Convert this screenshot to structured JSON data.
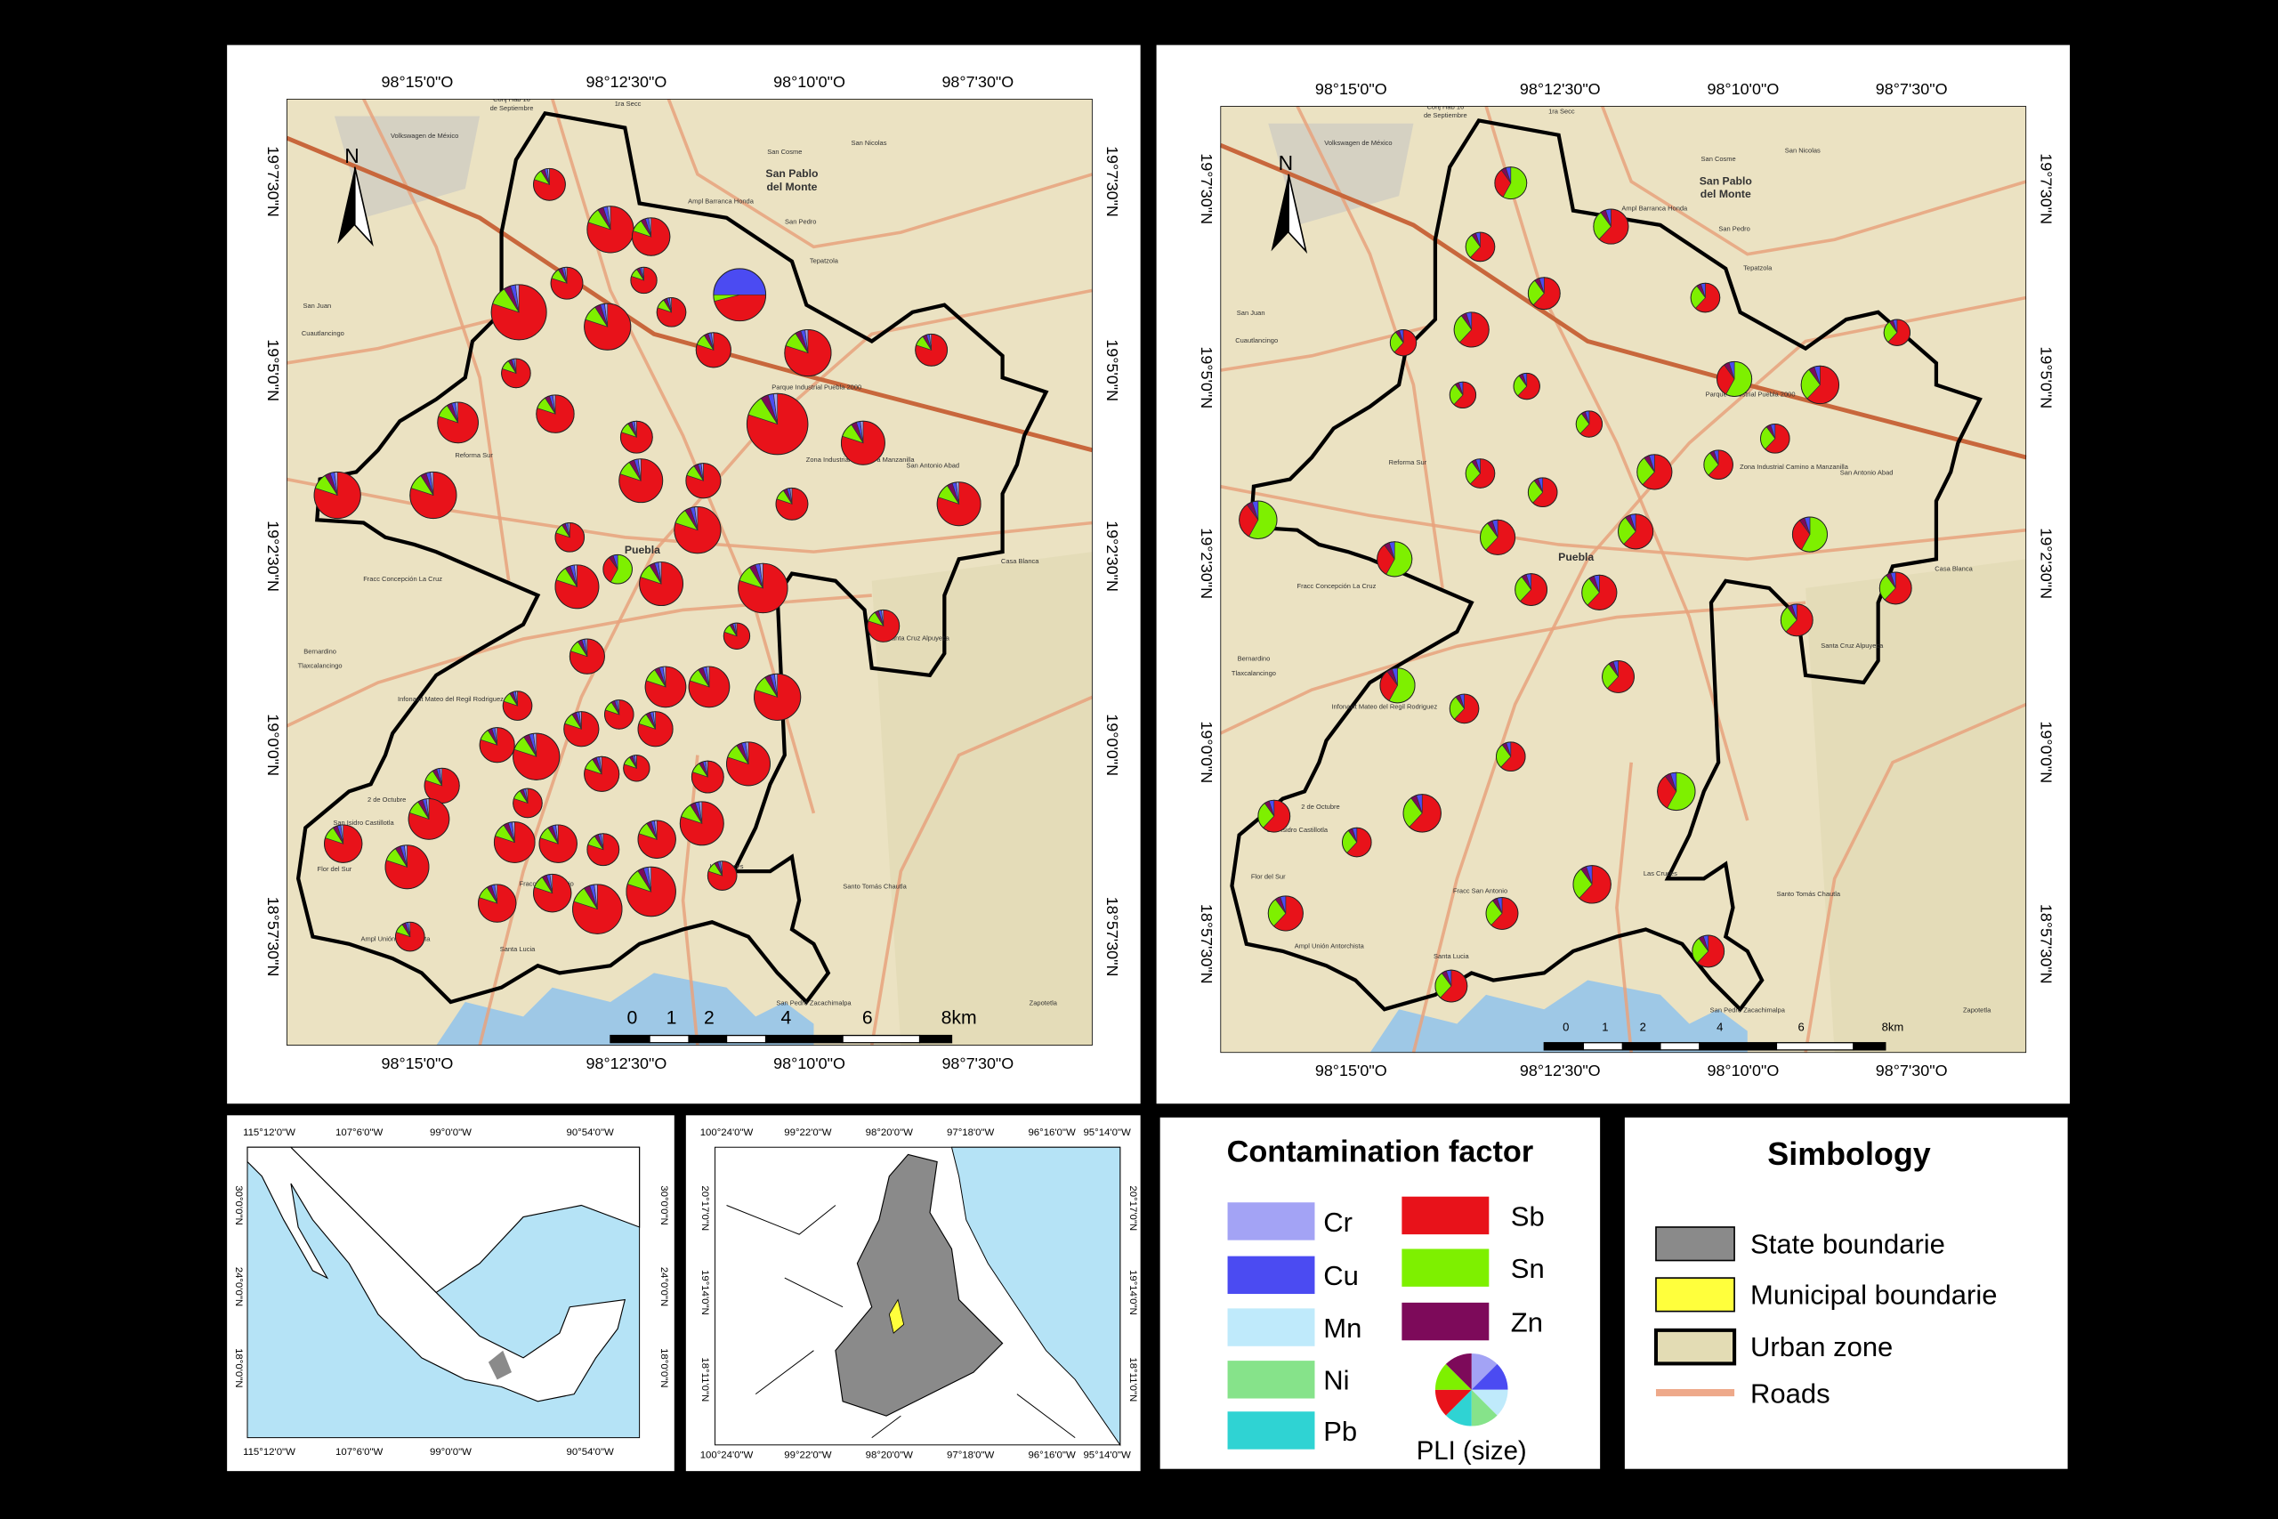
{
  "map_panels": [
    {
      "coord_x": [
        "98°15'0\"O",
        "98°12'30\"O",
        "98°10'0\"O",
        "98°7'30\"O"
      ],
      "coord_y": [
        "19°7'30\"N",
        "19°5'0\"N",
        "19°2'30\"N",
        "19°0'0\"N",
        "18°57'30\"N"
      ],
      "north": "N",
      "scale_labels": [
        "0",
        "1",
        "2",
        "4",
        "6",
        "8km"
      ],
      "places": [
        "Conj Hab 16",
        "de Septiembre",
        "1ra Secc",
        "San Cosme",
        "San Nicolas",
        "San Pablo",
        "del Monte",
        "Volkswagen de México",
        "San Pedro",
        "Tepatzola",
        "Ampl Barranca Honda",
        "San Juan",
        "Cuautlancingo",
        "Reforma Sur",
        "Parque Industrial Puebla 2000",
        "Zona Industrial Camino a Manzanilla",
        "San Antonio Abad",
        "Puebla",
        "Casa Blanca",
        "Fracc Concepción La Cruz",
        "Bernardino",
        "Tlaxcalancingo",
        "Santa Cruz Alpuyeca",
        "Infonavit Mateo del Regil Rodriguez",
        "2 de Octubre",
        "San Isidro Castillotla",
        "Flor del Sur",
        "Fracc San Antonio",
        "Las Cruces",
        "Santo Tomás Chautla",
        "Ampl Unión Antorchista",
        "Santa Lucia",
        "San Pedro Zacachimalpa",
        "Zapotetla"
      ]
    },
    {
      "coord_x": [
        "98°15'0\"O",
        "98°12'30\"O",
        "98°10'0\"O",
        "98°7'30\"O"
      ],
      "coord_y": [
        "19°7'30\"N",
        "19°5'0\"N",
        "19°2'30\"N",
        "19°0'0\"N",
        "18°57'30\"N"
      ],
      "north": "N",
      "scale_labels": [
        "0",
        "1",
        "2",
        "4",
        "6",
        "8km"
      ],
      "places": [
        "Conj Hab 16",
        "de Septiembre",
        "1ra Secc",
        "San Cosme",
        "San Nicolas",
        "San Pablo",
        "del Monte",
        "Volkswagen de México",
        "San Pedro",
        "Tepatzola",
        "Ampl Barranca Honda",
        "San Juan",
        "Cuautlancingo",
        "Reforma Sur",
        "Parque Industrial Puebla 2000",
        "Zona Industrial Camino a Manzanilla",
        "San Antonio Abad",
        "Puebla",
        "Casa Blanca",
        "Fracc Concepción La Cruz",
        "Bernardino",
        "Tlaxcalancingo",
        "Santa Cruz Alpuyeca",
        "Infonavit Mateo del Regil Rodriguez",
        "2 de Octubre",
        "San Isidro Castillotla",
        "Flor del Sur",
        "Fracc San Antonio",
        "Las Cruces",
        "Santo Tomás Chautla",
        "Ampl Unión Antorchista",
        "Santa Lucia",
        "San Pedro Zacachimalpa",
        "Zapotetla"
      ]
    }
  ],
  "inset_mexico": {
    "coord_x": [
      "115°12'0\"W",
      "107°6'0\"W",
      "99°0'0\"W",
      "90°54'0\"W"
    ],
    "coord_y": [
      "30°0'0\"N",
      "24°0'0\"N",
      "18°0'0\"N"
    ]
  },
  "inset_region": {
    "coord_x": [
      "100°24'0\"W",
      "99°22'0\"W",
      "98°20'0\"W",
      "97°18'0\"W",
      "96°16'0\"W",
      "95°14'0\"W"
    ],
    "coord_y": [
      "20°17'0\"N",
      "19°14'0\"N",
      "18°11'0\"N"
    ]
  },
  "legend": {
    "title": "Contamination factor",
    "items": [
      {
        "label": "Cr",
        "color": "#a3a3f5"
      },
      {
        "label": "Cu",
        "color": "#4b4bf2"
      },
      {
        "label": "Mn",
        "color": "#bfeafb"
      },
      {
        "label": "Ni",
        "color": "#86e38a"
      },
      {
        "label": "Pb",
        "color": "#2fd3d3"
      },
      {
        "label": "Sb",
        "color": "#e8121a"
      },
      {
        "label": "Sn",
        "color": "#7ef000"
      },
      {
        "label": "Zn",
        "color": "#7d0a5a"
      }
    ],
    "pli_label": "PLI (size)"
  },
  "simbology": {
    "title": "Simbology",
    "items": [
      {
        "label": "State boundarie",
        "color": "#8a8a8a"
      },
      {
        "label": "Municipal boundarie",
        "color": "#ffff3c"
      },
      {
        "label": "Urban zone",
        "color": "#e3dcb4"
      },
      {
        "label": "Roads",
        "color": "#eea98a"
      }
    ]
  }
}
